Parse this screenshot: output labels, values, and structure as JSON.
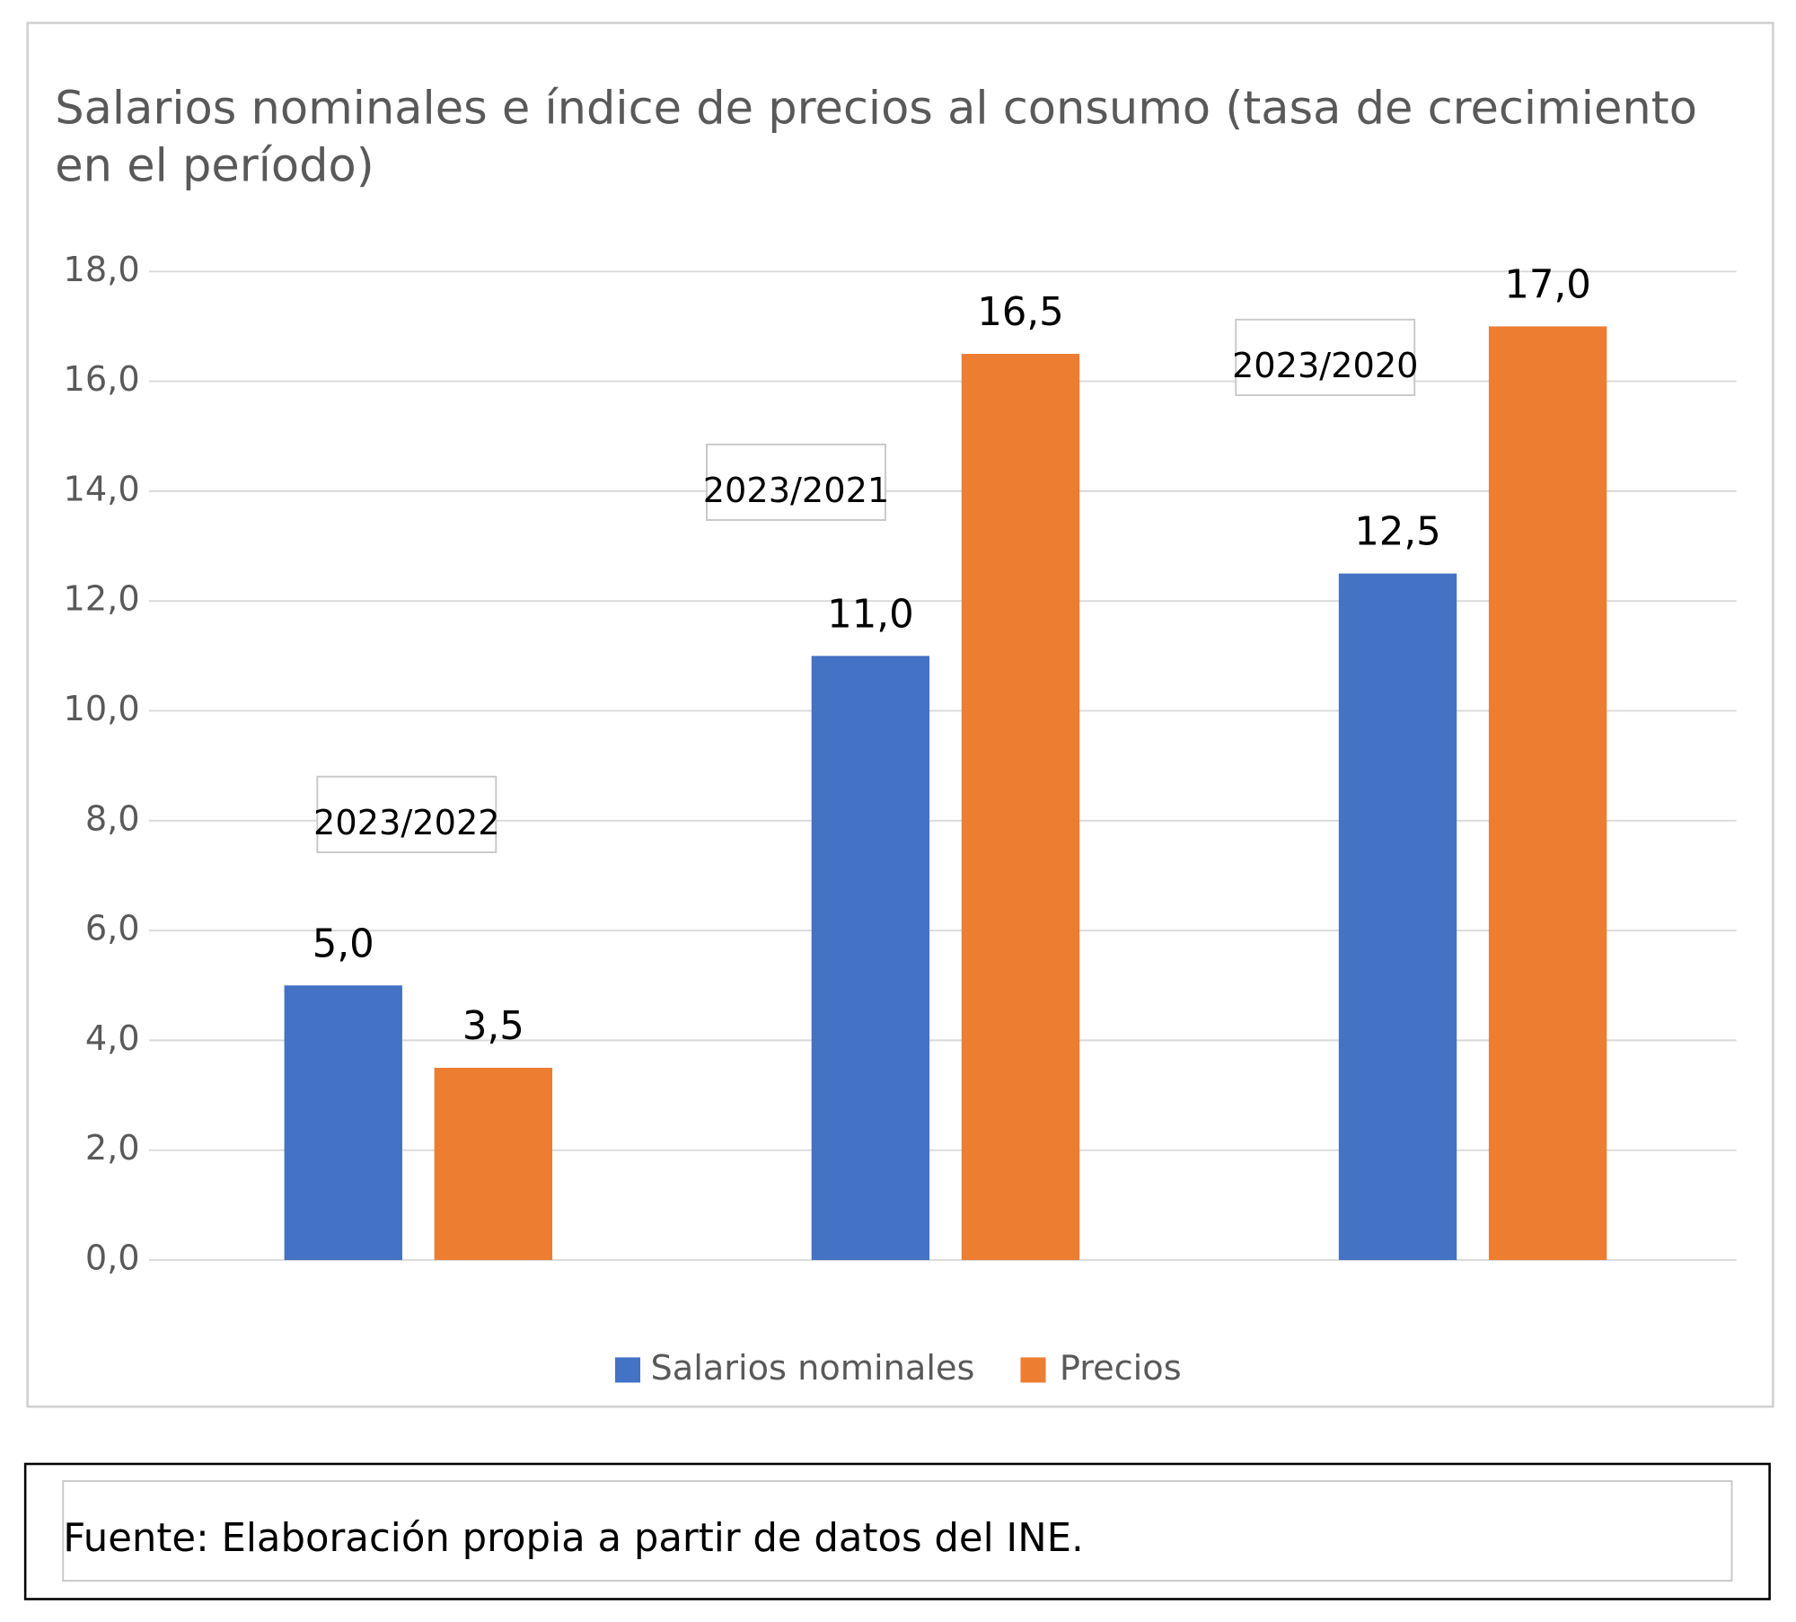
{
  "chart_data": {
    "type": "bar",
    "title": "Salarios nominales e índice de precios al consumo (tasa de crecimiento en el período)",
    "categories": [
      "2023/2022",
      "2023/2021",
      "2023/2020"
    ],
    "series": [
      {
        "name": "Salarios nominales",
        "color": "#4472c4",
        "values": [
          5.0,
          11.0,
          12.5
        ],
        "value_labels": [
          "5,0",
          "11,0",
          "12,5"
        ]
      },
      {
        "name": "Precios",
        "color": "#ed7d31",
        "values": [
          3.5,
          16.5,
          17.0
        ],
        "value_labels": [
          "3,5",
          "16,5",
          "17,0"
        ]
      }
    ],
    "ylim": [
      0,
      18
    ],
    "yticks": [
      {
        "value": 0,
        "label": "0,0"
      },
      {
        "value": 2,
        "label": "2,0"
      },
      {
        "value": 4,
        "label": "4,0"
      },
      {
        "value": 6,
        "label": "6,0"
      },
      {
        "value": 8,
        "label": "8,0"
      },
      {
        "value": 10,
        "label": "10,0"
      },
      {
        "value": 12,
        "label": "12,0"
      },
      {
        "value": 14,
        "label": "14,0"
      },
      {
        "value": 16,
        "label": "16,0"
      },
      {
        "value": 18,
        "label": "18,0"
      }
    ],
    "grid": true,
    "legend": "bottom",
    "source": "Fuente: Elaboración propia a partir de datos del INE."
  }
}
